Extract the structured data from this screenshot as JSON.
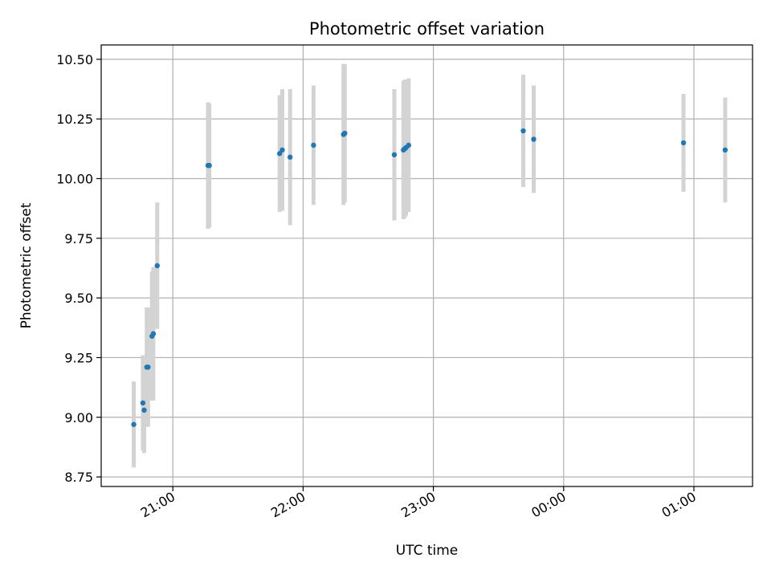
{
  "chart_data": {
    "type": "scatter",
    "title": "Photometric offset variation",
    "xlabel": "UTC time",
    "ylabel": "Photometric offset",
    "x_ticks": [
      "21:00",
      "22:00",
      "23:00",
      "00:00",
      "01:00"
    ],
    "x_tick_values": [
      21.0,
      22.0,
      23.0,
      24.0,
      25.0
    ],
    "xlim": [
      20.45,
      25.45
    ],
    "y_ticks": [
      "8.75",
      "9.00",
      "9.25",
      "9.50",
      "9.75",
      "10.00",
      "10.25",
      "10.50"
    ],
    "y_tick_values": [
      8.75,
      9.0,
      9.25,
      9.5,
      9.75,
      10.0,
      10.25,
      10.5
    ],
    "ylim": [
      8.71,
      10.56
    ],
    "grid": true,
    "point_color": "#1f77b4",
    "errorbar_color": "#d3d3d3",
    "points": [
      {
        "x": 20.7,
        "y": 8.97,
        "err": 0.18
      },
      {
        "x": 20.77,
        "y": 9.06,
        "err": 0.2
      },
      {
        "x": 20.78,
        "y": 9.03,
        "err": 0.18
      },
      {
        "x": 20.8,
        "y": 9.21,
        "err": 0.25
      },
      {
        "x": 20.81,
        "y": 9.21,
        "err": 0.25
      },
      {
        "x": 20.84,
        "y": 9.34,
        "err": 0.27
      },
      {
        "x": 20.85,
        "y": 9.35,
        "err": 0.28
      },
      {
        "x": 20.88,
        "y": 9.635,
        "err": 0.265
      },
      {
        "x": 21.27,
        "y": 10.055,
        "err": 0.265
      },
      {
        "x": 21.28,
        "y": 10.055,
        "err": 0.26
      },
      {
        "x": 21.82,
        "y": 10.105,
        "err": 0.245
      },
      {
        "x": 21.84,
        "y": 10.12,
        "err": 0.255
      },
      {
        "x": 21.9,
        "y": 10.09,
        "err": 0.285
      },
      {
        "x": 22.08,
        "y": 10.14,
        "err": 0.25
      },
      {
        "x": 22.31,
        "y": 10.185,
        "err": 0.295
      },
      {
        "x": 22.32,
        "y": 10.19,
        "err": 0.29
      },
      {
        "x": 22.7,
        "y": 10.1,
        "err": 0.275
      },
      {
        "x": 22.77,
        "y": 10.12,
        "err": 0.29
      },
      {
        "x": 22.78,
        "y": 10.125,
        "err": 0.29
      },
      {
        "x": 22.79,
        "y": 10.13,
        "err": 0.285
      },
      {
        "x": 22.81,
        "y": 10.14,
        "err": 0.28
      },
      {
        "x": 23.69,
        "y": 10.2,
        "err": 0.235
      },
      {
        "x": 23.77,
        "y": 10.165,
        "err": 0.225
      },
      {
        "x": 24.92,
        "y": 10.15,
        "err": 0.205
      },
      {
        "x": 25.24,
        "y": 10.12,
        "err": 0.22
      }
    ]
  }
}
